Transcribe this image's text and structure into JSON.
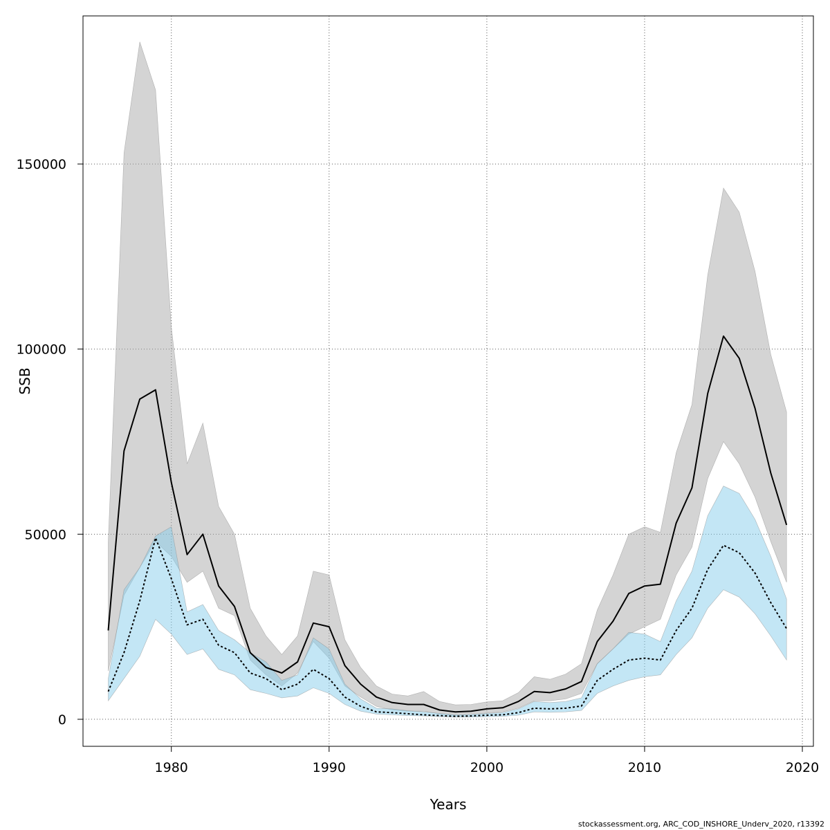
{
  "chart_data": {
    "type": "area",
    "xlabel": "Years",
    "ylabel": "SSB",
    "xlim": [
      1974.4,
      2020.7
    ],
    "ylim": [
      -7300,
      190000
    ],
    "grid": true,
    "x_ticks": [
      1980,
      1990,
      2000,
      2010,
      2020
    ],
    "y_ticks": [
      0,
      50000,
      100000,
      150000
    ],
    "x": [
      1976,
      1977,
      1978,
      1979,
      1980,
      1981,
      1982,
      1983,
      1984,
      1985,
      1986,
      1987,
      1988,
      1989,
      1990,
      1991,
      1992,
      1993,
      1994,
      1995,
      1996,
      1997,
      1998,
      1999,
      2000,
      2001,
      2002,
      2003,
      2004,
      2005,
      2006,
      2007,
      2008,
      2009,
      2010,
      2011,
      2012,
      2013,
      2014,
      2015,
      2016,
      2017,
      2018,
      2019
    ],
    "series": [
      {
        "line_style": "solid",
        "color": "#000000",
        "band_color": "#a9a9a9",
        "values": [
          24000,
          72500,
          86500,
          89000,
          64000,
          44500,
          50000,
          36000,
          30500,
          18000,
          14000,
          12500,
          15500,
          26000,
          25000,
          14500,
          9500,
          6000,
          4500,
          4000,
          4000,
          2500,
          2000,
          2200,
          2800,
          3100,
          4800,
          7500,
          7200,
          8200,
          10200,
          21000,
          26500,
          34000,
          36000,
          36500,
          53000,
          62500,
          88000,
          103500,
          97500,
          84000,
          66500,
          52500
        ],
        "lower": [
          13000,
          33500,
          41000,
          48000,
          44000,
          37000,
          40000,
          30000,
          28000,
          16000,
          12000,
          9000,
          12500,
          21000,
          16500,
          9000,
          6000,
          3500,
          2500,
          2200,
          2200,
          1500,
          1000,
          1300,
          1700,
          2000,
          3000,
          5000,
          5000,
          5500,
          7000,
          15000,
          19000,
          23000,
          25000,
          27000,
          39000,
          46500,
          65000,
          75000,
          69000,
          60000,
          48000,
          37000
        ],
        "upper": [
          48000,
          153000,
          183000,
          170000,
          106000,
          69000,
          80000,
          57500,
          50000,
          30000,
          22500,
          17500,
          22500,
          40000,
          39000,
          21500,
          14000,
          9000,
          6800,
          6300,
          7500,
          4800,
          3900,
          4000,
          4700,
          5000,
          7200,
          11500,
          10800,
          12200,
          15000,
          29500,
          39000,
          50000,
          52000,
          50500,
          72000,
          85000,
          120000,
          143500,
          137000,
          121000,
          98500,
          83000
        ]
      },
      {
        "line_style": "dotted",
        "color": "#000000",
        "band_color": "#87ceeb",
        "values": [
          7500,
          18000,
          32000,
          49000,
          38000,
          25500,
          27000,
          20000,
          18000,
          12500,
          11000,
          8000,
          9500,
          13500,
          11000,
          6000,
          3500,
          2000,
          1800,
          1500,
          1200,
          1000,
          800,
          900,
          1100,
          1200,
          1800,
          3000,
          2800,
          3000,
          3600,
          10500,
          13500,
          16000,
          16500,
          16000,
          24000,
          30000,
          40500,
          47000,
          45000,
          39500,
          31500,
          24500
        ],
        "lower": [
          5000,
          11000,
          17000,
          27000,
          23000,
          17500,
          19000,
          13500,
          12000,
          8000,
          7000,
          5800,
          6300,
          8500,
          7000,
          4000,
          2200,
          1400,
          1200,
          1000,
          900,
          700,
          600,
          600,
          700,
          800,
          1100,
          2000,
          1900,
          2000,
          2400,
          7000,
          9000,
          10500,
          11500,
          12000,
          17500,
          22000,
          30000,
          35000,
          33000,
          28500,
          22500,
          16000
        ],
        "upper": [
          11000,
          35000,
          41000,
          49500,
          52000,
          29000,
          31000,
          24000,
          21500,
          18000,
          15500,
          10500,
          12000,
          22000,
          19000,
          9500,
          5500,
          3000,
          2800,
          2300,
          2000,
          1600,
          1200,
          1300,
          1600,
          1800,
          2800,
          4800,
          4500,
          4800,
          5800,
          15000,
          19000,
          23500,
          23000,
          21000,
          32000,
          40000,
          55000,
          63000,
          61000,
          54000,
          44000,
          32500
        ]
      }
    ]
  },
  "footer_text": "stockassessment.org, ARC_COD_INSHORE_Underv_2020, r13392"
}
